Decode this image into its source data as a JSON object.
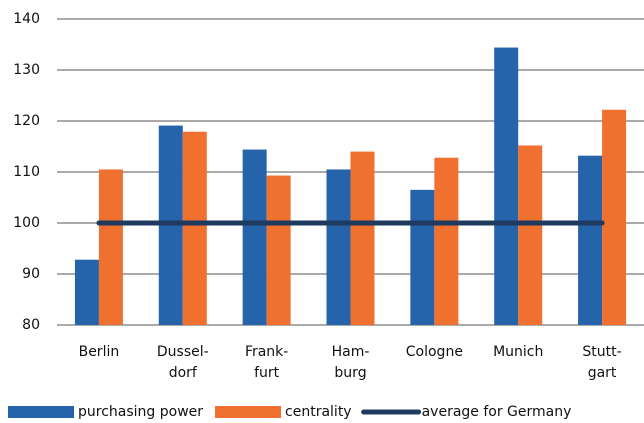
{
  "chart_data": {
    "type": "bar",
    "categories": [
      "Berlin",
      "Dussel-\ndorf",
      "Frank-\nfurt",
      "Ham-\nburg",
      "Cologne",
      "Munich",
      "Stutt-\ngart"
    ],
    "series": [
      {
        "name": "purchasing power",
        "color": "#2563aa",
        "values": [
          92.8,
          119.1,
          114.4,
          110.5,
          106.5,
          134.4,
          113.2
        ]
      },
      {
        "name": "centrality",
        "color": "#f07030",
        "values": [
          110.5,
          117.9,
          109.3,
          114.0,
          112.8,
          115.2,
          122.2
        ]
      },
      {
        "name": "average for Germany",
        "color": "#1e3a5f",
        "type": "line",
        "values": [
          100,
          100,
          100,
          100,
          100,
          100,
          100
        ]
      }
    ],
    "ylim": [
      80,
      140
    ],
    "yticks": [
      80,
      90,
      100,
      110,
      120,
      130,
      140
    ],
    "grid": true
  }
}
